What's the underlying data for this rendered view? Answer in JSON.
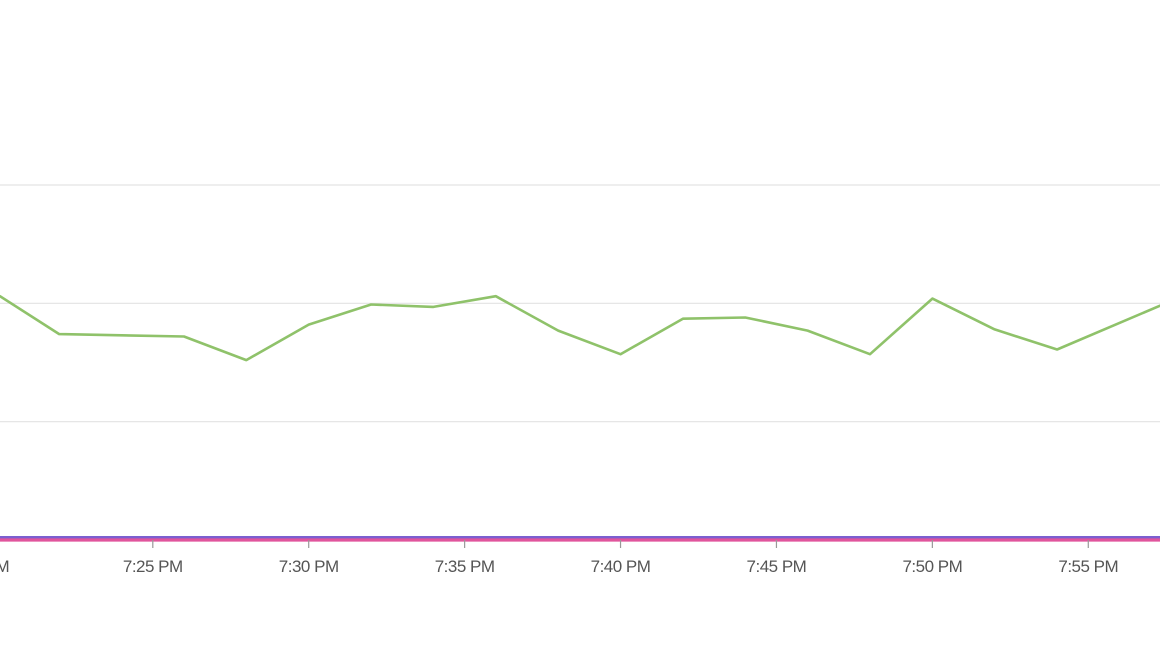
{
  "chart_data": {
    "type": "line",
    "title": "",
    "xlabel": "",
    "ylabel": "",
    "x_unit": "minutes after 7:25 PM",
    "x_ticks": [
      {
        "label": "PM",
        "minute": -5
      },
      {
        "label": "7:25 PM",
        "minute": 0
      },
      {
        "label": "7:30 PM",
        "minute": 5
      },
      {
        "label": "7:35 PM",
        "minute": 10
      },
      {
        "label": "7:40 PM",
        "minute": 15
      },
      {
        "label": "7:45 PM",
        "minute": 20
      },
      {
        "label": "7:50 PM",
        "minute": 25
      },
      {
        "label": "7:55 PM",
        "minute": 30
      }
    ],
    "xlim": [
      -4.9,
      32.3
    ],
    "ylim": [
      0,
      3
    ],
    "grid": true,
    "gridlines_y": [
      1,
      2,
      3
    ],
    "series": [
      {
        "color": "#8fc26a",
        "x": [
          -4.9,
          -3,
          1,
          3,
          5,
          7,
          9,
          11,
          13,
          15,
          17,
          19,
          21,
          23,
          25,
          27,
          29,
          32.3
        ],
        "y": [
          2.06,
          1.74,
          1.72,
          1.52,
          1.82,
          1.99,
          1.97,
          2.06,
          1.77,
          1.57,
          1.87,
          1.88,
          1.77,
          1.57,
          2.04,
          1.78,
          1.61,
          1.98
        ]
      },
      {
        "color": "#7b5fd0",
        "x": [
          -4.9,
          32.3
        ],
        "y": [
          0.02,
          0.02
        ]
      },
      {
        "color": "#e0559c",
        "x": [
          -4.9,
          32.3
        ],
        "y": [
          0.0,
          0.0
        ]
      }
    ]
  }
}
